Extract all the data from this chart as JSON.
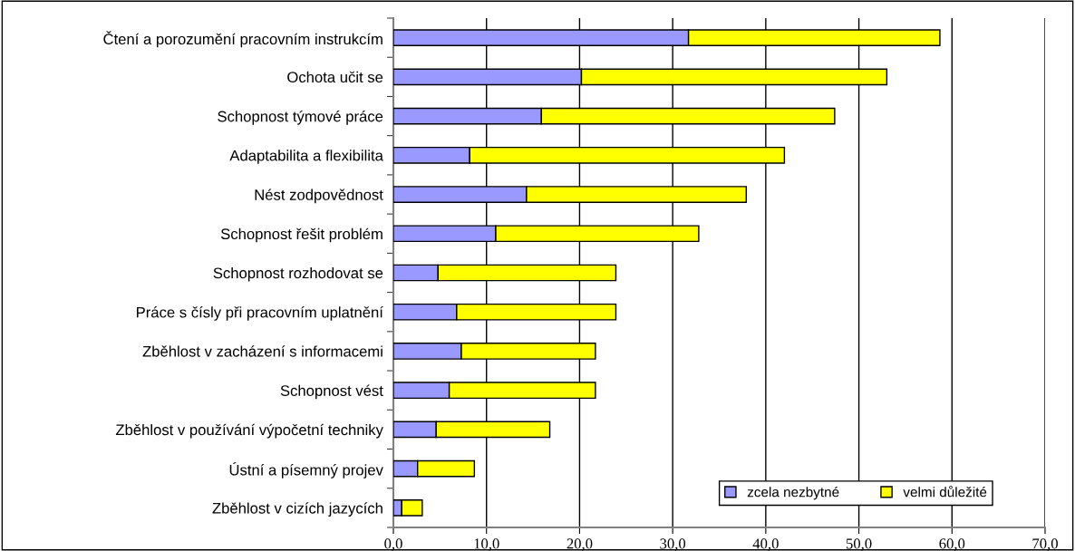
{
  "chart_data": {
    "type": "bar",
    "orientation": "horizontal",
    "stacked": true,
    "categories": [
      "Čtení a porozumění pracovním instrukcím",
      "Ochota učit se",
      "Schopnost týmové práce",
      "Adaptabilita a flexibilita",
      "Nést zodpovědnost",
      "Schopnost řešit problém",
      "Schopnost rozhodovat se",
      "Práce s čísly při pracovním uplatnění",
      "Zběhlost v zacházení s informacemi",
      "Schopnost vést",
      "Zběhlost v používání výpočetní techniky",
      "Ústní a písemný projev",
      "Zběhlost v cizích jazycích"
    ],
    "series": [
      {
        "name": "zcela nezbytné",
        "color": "#9999ff",
        "values": [
          31.7,
          20.2,
          15.9,
          8.2,
          14.3,
          11.0,
          4.8,
          6.8,
          7.3,
          6.0,
          4.6,
          2.6,
          0.9
        ]
      },
      {
        "name": "velmi důležité",
        "color": "#ffff00",
        "values": [
          27.0,
          32.8,
          31.5,
          33.8,
          23.6,
          21.8,
          19.1,
          17.1,
          14.4,
          15.7,
          12.2,
          6.1,
          2.2
        ]
      }
    ],
    "xlim": [
      0,
      70
    ],
    "xticks": [
      {
        "value": 0,
        "label": "0,0"
      },
      {
        "value": 10,
        "label": "10,0"
      },
      {
        "value": 20,
        "label": "20,0"
      },
      {
        "value": 30,
        "label": "30,0"
      },
      {
        "value": 40,
        "label": "40,0"
      },
      {
        "value": 50,
        "label": "50,0"
      },
      {
        "value": 60,
        "label": "60,0"
      },
      {
        "value": 70,
        "label": "70,0"
      }
    ],
    "grid": "x",
    "legend": "bottom right"
  }
}
